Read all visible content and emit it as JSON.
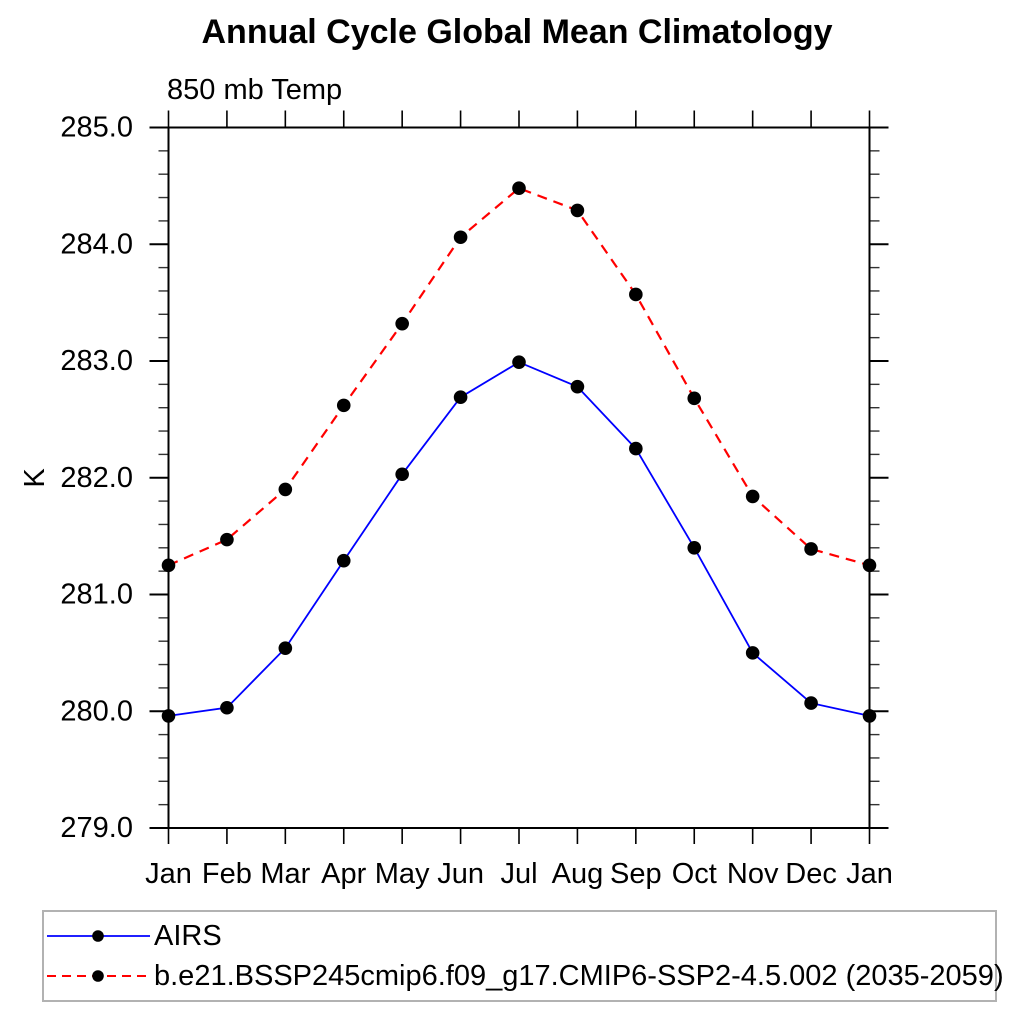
{
  "header": {
    "title": "Annual Cycle Global Mean Climatology",
    "subtitle": "850 mb Temp"
  },
  "chart_data": {
    "type": "line",
    "title": "Annual Cycle Global Mean Climatology",
    "subtitle": "850 mb Temp",
    "ylabel": "K",
    "xlabel": "",
    "grid": false,
    "legend_position": "bottom-left",
    "categories": [
      "Jan",
      "Feb",
      "Mar",
      "Apr",
      "May",
      "Jun",
      "Jul",
      "Aug",
      "Sep",
      "Oct",
      "Nov",
      "Dec",
      "Jan"
    ],
    "series": [
      {
        "name": "AIRS",
        "color": "#0000ff",
        "line_style": "solid",
        "marker": "filled-circle",
        "marker_color": "#000000",
        "values": [
          279.96,
          280.03,
          280.54,
          281.29,
          282.03,
          282.69,
          282.99,
          282.78,
          282.25,
          281.4,
          280.5,
          280.07,
          279.96
        ]
      },
      {
        "name": "b.e21.BSSP245cmip6.f09_g17.CMIP6-SSP2-4.5.002 (2035-2059)",
        "color": "#ff0000",
        "line_style": "dashed",
        "marker": "filled-circle",
        "marker_color": "#000000",
        "values": [
          281.25,
          281.47,
          281.9,
          282.62,
          283.32,
          284.06,
          284.48,
          284.29,
          283.57,
          282.68,
          281.84,
          281.39,
          281.25
        ]
      }
    ],
    "ylim": [
      279.0,
      285.0
    ],
    "ytick_major_values": [
      285.0,
      284.0,
      283.0,
      282.0,
      281.0,
      280.0,
      279.0
    ],
    "ytick_major_labels": [
      "285.0",
      "284.0",
      "283.0",
      "282.0",
      "281.0",
      "280.0",
      "279.0"
    ],
    "ytick_minor_step": 0.2
  },
  "legend": {
    "entries": [
      {
        "label": "AIRS"
      },
      {
        "label": "b.e21.BSSP245cmip6.f09_g17.CMIP6-SSP2-4.5.002 (2035-2059)"
      }
    ]
  },
  "colors": {
    "axis": "#000000",
    "text": "#000000",
    "legend_border": "#b2b2b2",
    "marker": "#000000"
  }
}
